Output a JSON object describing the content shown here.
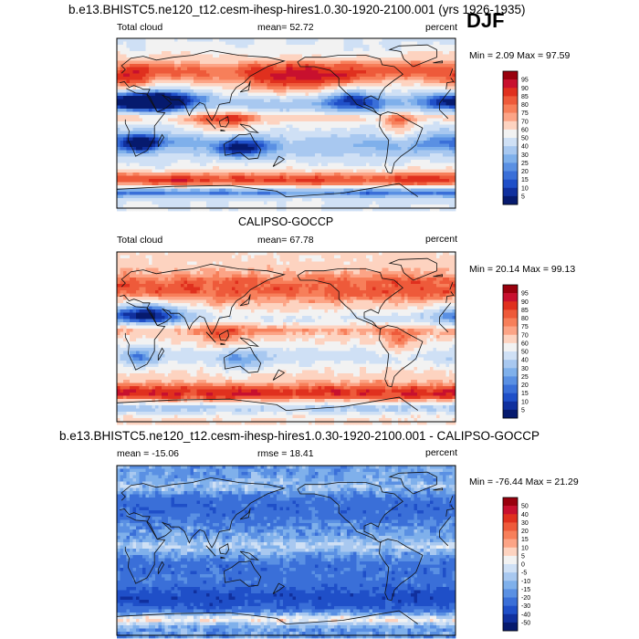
{
  "season": "DJF",
  "chart_data": [
    {
      "type": "heatmap",
      "title": "b.e13.BHISTC5.ne120_t12.cesm-ihesp-hires1.0.30-1920-2100.001 (yrs 1926-1935)",
      "left_label": "Total cloud",
      "center_label": "mean=  52.72",
      "units": "percent",
      "minmax_label": "Min =   2.09 Max =  97.59",
      "colorbar_ticks": [
        "95",
        "90",
        "85",
        "80",
        "75",
        "70",
        "60",
        "50",
        "40",
        "30",
        "25",
        "20",
        "15",
        "10",
        "5"
      ],
      "colorbar_colors": [
        "#99000d",
        "#c8102e",
        "#e0301e",
        "#ee5a3a",
        "#f77f5a",
        "#fca486",
        "#fdd3c0",
        "#f2f2f2",
        "#cfe0f5",
        "#a8c8f0",
        "#7fb0eb",
        "#5a90e3",
        "#3a6fd8",
        "#1f4fc8",
        "#10309e",
        "#061a6e"
      ],
      "mean": 52.72,
      "min": 2.09,
      "max": 97.59
    },
    {
      "type": "heatmap",
      "title": "CALIPSO-GOCCP",
      "left_label": "Total cloud",
      "center_label": "mean=  67.78",
      "units": "percent",
      "minmax_label": "Min =  20.14 Max =  99.13",
      "colorbar_ticks": [
        "95",
        "90",
        "85",
        "80",
        "75",
        "70",
        "60",
        "50",
        "40",
        "30",
        "25",
        "20",
        "15",
        "10",
        "5"
      ],
      "colorbar_colors": [
        "#99000d",
        "#c8102e",
        "#e0301e",
        "#ee5a3a",
        "#f77f5a",
        "#fca486",
        "#fdd3c0",
        "#f2f2f2",
        "#cfe0f5",
        "#a8c8f0",
        "#7fb0eb",
        "#5a90e3",
        "#3a6fd8",
        "#1f4fc8",
        "#10309e",
        "#061a6e"
      ],
      "mean": 67.78,
      "min": 20.14,
      "max": 99.13
    },
    {
      "type": "heatmap",
      "title": "b.e13.BHISTC5.ne120_t12.cesm-ihesp-hires1.0.30-1920-2100.001 - CALIPSO-GOCCP",
      "left_label": "mean = -15.06",
      "center_label": "rmse =  18.41",
      "units": "percent",
      "minmax_label": "Min = -76.44 Max =  21.29",
      "colorbar_ticks": [
        "50",
        "40",
        "30",
        "20",
        "15",
        "10",
        "5",
        "0",
        "-5",
        "-10",
        "-15",
        "-20",
        "-30",
        "-40",
        "-50"
      ],
      "colorbar_colors": [
        "#99000d",
        "#c8102e",
        "#e0301e",
        "#ee5a3a",
        "#f77f5a",
        "#fca486",
        "#fdd3c0",
        "#f2f2f2",
        "#cfe0f5",
        "#a8c8f0",
        "#7fb0eb",
        "#5a90e3",
        "#3a6fd8",
        "#1f4fc8",
        "#10309e",
        "#061a6e"
      ],
      "mean": -15.06,
      "rmse": 18.41,
      "min": -76.44,
      "max": 21.29
    }
  ]
}
